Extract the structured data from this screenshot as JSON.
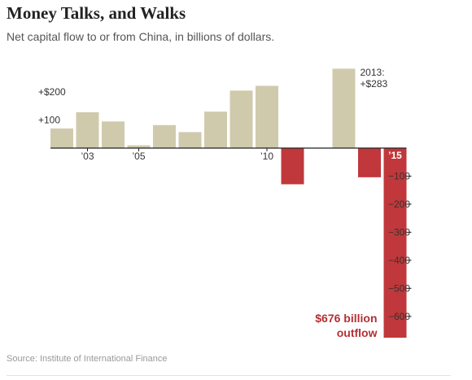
{
  "title": "Money Talks, and Walks",
  "subtitle": "Net capital flow to or from China, in billions of dollars.",
  "source": "Source: Institute of International Finance",
  "colors": {
    "positive": "#d0caad",
    "negative": "#c0383b",
    "text": "#333333",
    "highlight": "#b33034"
  },
  "chart_data": {
    "type": "bar",
    "title": "Money Talks, and Walks",
    "subtitle": "Net capital flow to or from China, in billions of dollars.",
    "categories": [
      "2002",
      "2003",
      "2004",
      "2005",
      "2006",
      "2007",
      "2008",
      "2009",
      "2010",
      "2011",
      "2012",
      "2013",
      "2014",
      "2015"
    ],
    "series": [
      {
        "values": [
          70,
          128,
          95,
          10,
          82,
          57,
          130,
          205,
          222,
          -129,
          0,
          283,
          -104,
          -676
        ]
      }
    ],
    "ylim": [
      -676,
      283
    ],
    "grid": false,
    "x_tick_labels": [
      {
        "category": "2003",
        "label": "’03",
        "bold": false
      },
      {
        "category": "2005",
        "label": "’05",
        "bold": false
      },
      {
        "category": "2010",
        "label": "’10",
        "bold": false
      },
      {
        "category": "2015",
        "label": "’15",
        "bold": true
      }
    ],
    "y_tick_labels_positive": [
      {
        "value": 200,
        "label": "+$200"
      },
      {
        "value": 100,
        "label": "+100"
      }
    ],
    "y_tick_labels_negative": [
      {
        "value": -100,
        "label": "−100"
      },
      {
        "value": -200,
        "label": "−200"
      },
      {
        "value": -300,
        "label": "−300"
      },
      {
        "value": -400,
        "label": "−400"
      },
      {
        "value": -500,
        "label": "−500"
      },
      {
        "value": -600,
        "label": "−600"
      }
    ],
    "annotations": [
      {
        "category": "2013",
        "lines": [
          "2013:",
          "+$283"
        ]
      },
      {
        "category": "2015",
        "lines": [
          "$676 billion",
          "outflow"
        ]
      }
    ]
  }
}
